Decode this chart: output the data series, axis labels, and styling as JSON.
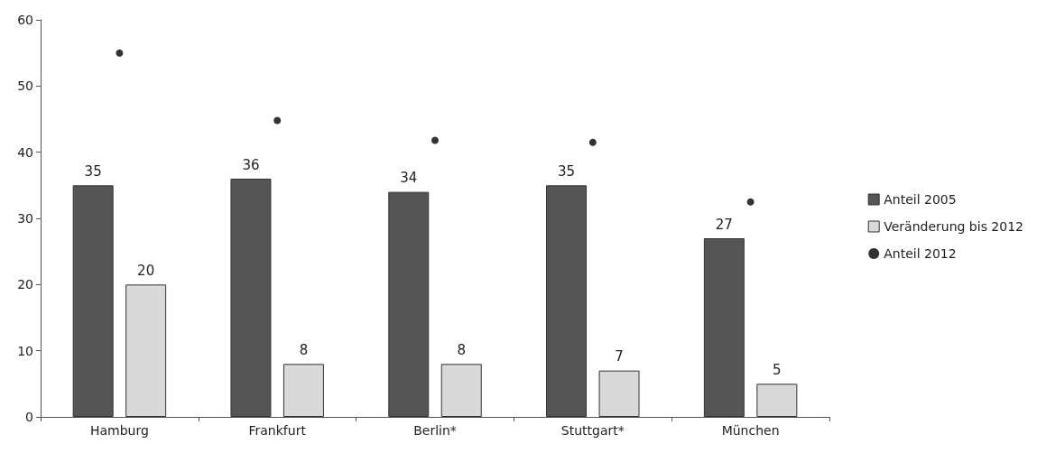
{
  "chart_data": {
    "type": "bar",
    "categories": [
      "Hamburg",
      "Frankfurt",
      "Berlin*",
      "Stuttgart*",
      "München"
    ],
    "series": [
      {
        "name": "Anteil 2005",
        "color": "#555555",
        "values": [
          35,
          36,
          34,
          35,
          27
        ],
        "data_labels": true
      },
      {
        "name": "Veränderung bis 2012",
        "color": "#d9d9d9",
        "values": [
          20,
          8,
          8,
          7,
          5
        ],
        "data_labels": true
      },
      {
        "name": "Anteil 2012",
        "type": "scatter",
        "color": "#000000",
        "x": [
          "Hamburg",
          "Frankfurt",
          "Berlin*",
          "Stuttgart*",
          "München"
        ],
        "values": [
          55,
          44.8,
          41.8,
          41.5,
          32.5
        ],
        "marker": "circle"
      }
    ],
    "ylim": [
      0,
      60
    ],
    "yticks": [
      0,
      10,
      20,
      30,
      40,
      50,
      60
    ],
    "grid": false,
    "legend": "right"
  }
}
